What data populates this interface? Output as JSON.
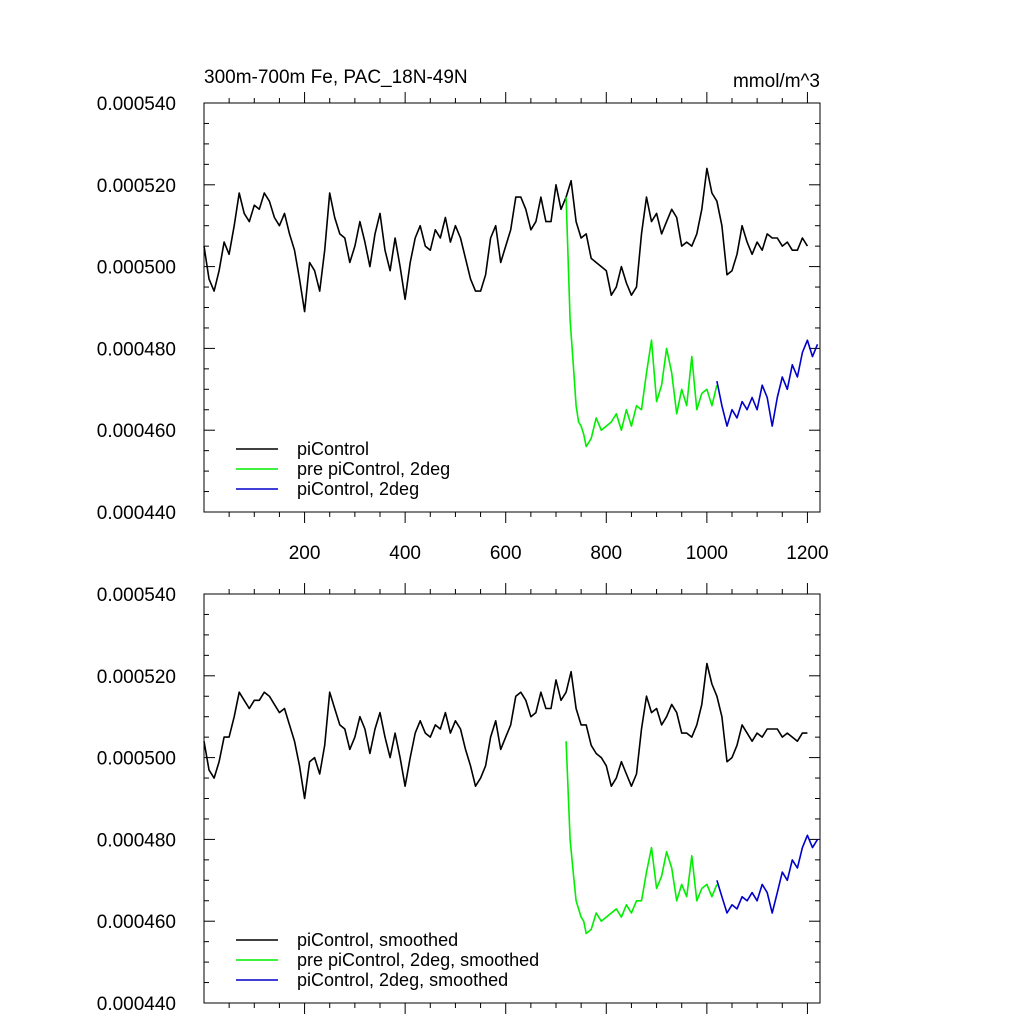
{
  "figure": {
    "title": "300m-700m Fe, PAC_18N-49N",
    "units": "mmol/m^3"
  },
  "chart_data": [
    {
      "type": "line",
      "title": "300m-700m Fe, PAC_18N-49N",
      "units": "mmol/m^3",
      "xlim": [
        0,
        1225
      ],
      "ylim": [
        0.00044,
        0.00054
      ],
      "yticks": [
        "0.000440",
        "0.000460",
        "0.000480",
        "0.000500",
        "0.000520",
        "0.000540"
      ],
      "xticks": [
        "200",
        "400",
        "600",
        "800",
        "1000",
        "1200"
      ],
      "legend_position": "bottom-left",
      "series": [
        {
          "name": "piControl",
          "color": "#000000",
          "x": [
            0,
            10,
            20,
            30,
            40,
            50,
            60,
            70,
            80,
            90,
            100,
            110,
            120,
            130,
            140,
            150,
            160,
            170,
            180,
            190,
            200,
            210,
            220,
            230,
            240,
            250,
            260,
            270,
            280,
            290,
            300,
            310,
            320,
            330,
            340,
            350,
            360,
            370,
            380,
            390,
            400,
            410,
            420,
            430,
            440,
            450,
            460,
            470,
            480,
            490,
            500,
            510,
            520,
            530,
            540,
            550,
            560,
            570,
            580,
            590,
            600,
            610,
            620,
            630,
            640,
            650,
            660,
            670,
            680,
            690,
            700,
            710,
            720,
            730,
            740,
            750,
            760,
            770,
            780,
            790,
            800,
            810,
            820,
            830,
            840,
            850,
            860,
            870,
            880,
            890,
            900,
            910,
            920,
            930,
            940,
            950,
            960,
            970,
            980,
            990,
            1000,
            1010,
            1020,
            1030,
            1040,
            1050,
            1060,
            1070,
            1080,
            1090,
            1100,
            1110,
            1120,
            1130,
            1140,
            1150,
            1160,
            1170,
            1180,
            1190,
            1200
          ],
          "y": [
            0.000505,
            0.000497,
            0.000494,
            0.000499,
            0.000506,
            0.000503,
            0.00051,
            0.000518,
            0.000513,
            0.000511,
            0.000515,
            0.000514,
            0.000518,
            0.000516,
            0.000512,
            0.00051,
            0.000513,
            0.000508,
            0.000504,
            0.000497,
            0.000489,
            0.000501,
            0.000499,
            0.000494,
            0.000504,
            0.000518,
            0.000512,
            0.000508,
            0.000507,
            0.000501,
            0.000505,
            0.000511,
            0.000506,
            0.0005,
            0.000508,
            0.000513,
            0.000504,
            0.000499,
            0.000507,
            0.0005,
            0.000492,
            0.000501,
            0.000507,
            0.00051,
            0.000505,
            0.000504,
            0.000509,
            0.000507,
            0.000512,
            0.000506,
            0.00051,
            0.000507,
            0.000502,
            0.000497,
            0.000494,
            0.000494,
            0.000498,
            0.000507,
            0.00051,
            0.000501,
            0.000505,
            0.000509,
            0.000517,
            0.000517,
            0.000514,
            0.000509,
            0.000511,
            0.000517,
            0.000511,
            0.000511,
            0.00052,
            0.000514,
            0.000517,
            0.000521,
            0.000511,
            0.000507,
            0.000508,
            0.000502,
            0.000501,
            0.0005,
            0.000499,
            0.000493,
            0.000495,
            0.0005,
            0.000496,
            0.000493,
            0.000495,
            0.000508,
            0.000517,
            0.000511,
            0.000513,
            0.000508,
            0.000511,
            0.000514,
            0.000512,
            0.000505,
            0.000506,
            0.000505,
            0.000508,
            0.000514,
            0.000524,
            0.000518,
            0.000516,
            0.00051,
            0.000498,
            0.000499,
            0.000503,
            0.00051,
            0.000506,
            0.000503,
            0.000506,
            0.000504,
            0.000508,
            0.000507,
            0.000507,
            0.000505,
            0.000506,
            0.000504,
            0.000504,
            0.000507,
            0.000505
          ]
        },
        {
          "name": "pre piControl, 2deg",
          "color": "#00ee00",
          "x": [
            720,
            728,
            735,
            740,
            745,
            750,
            755,
            760,
            770,
            780,
            790,
            800,
            810,
            820,
            830,
            840,
            850,
            860,
            870,
            880,
            890,
            900,
            910,
            920,
            930,
            940,
            950,
            960,
            970,
            980,
            990,
            1000,
            1010,
            1020
          ],
          "y": [
            0.000517,
            0.000487,
            0.000475,
            0.000466,
            0.000462,
            0.000461,
            0.000459,
            0.000456,
            0.000458,
            0.000463,
            0.00046,
            0.000461,
            0.000462,
            0.000464,
            0.00046,
            0.000465,
            0.000461,
            0.000466,
            0.000465,
            0.000474,
            0.000482,
            0.000467,
            0.000471,
            0.00048,
            0.000474,
            0.000464,
            0.00047,
            0.000466,
            0.000478,
            0.000465,
            0.000469,
            0.00047,
            0.000466,
            0.000471
          ]
        },
        {
          "name": "piControl, 2deg",
          "color": "#0000cc",
          "x": [
            1020,
            1030,
            1040,
            1050,
            1060,
            1070,
            1080,
            1090,
            1100,
            1110,
            1120,
            1130,
            1140,
            1150,
            1160,
            1170,
            1180,
            1190,
            1200,
            1210,
            1220
          ],
          "y": [
            0.000472,
            0.000466,
            0.000461,
            0.000465,
            0.000463,
            0.000467,
            0.000465,
            0.000468,
            0.000465,
            0.000471,
            0.000468,
            0.000461,
            0.000468,
            0.000473,
            0.00047,
            0.000476,
            0.000473,
            0.000479,
            0.000482,
            0.000478,
            0.000481
          ]
        }
      ]
    },
    {
      "type": "line",
      "xlim": [
        0,
        1225
      ],
      "ylim": [
        0.00044,
        0.00054
      ],
      "yticks": [
        "0.000440",
        "0.000460",
        "0.000480",
        "0.000500",
        "0.000520",
        "0.000540"
      ],
      "legend_position": "bottom-left",
      "series": [
        {
          "name": "piControl, smoothed",
          "color": "#000000",
          "x": [
            0,
            10,
            20,
            30,
            40,
            50,
            60,
            70,
            80,
            90,
            100,
            110,
            120,
            130,
            140,
            150,
            160,
            170,
            180,
            190,
            200,
            210,
            220,
            230,
            240,
            250,
            260,
            270,
            280,
            290,
            300,
            310,
            320,
            330,
            340,
            350,
            360,
            370,
            380,
            390,
            400,
            410,
            420,
            430,
            440,
            450,
            460,
            470,
            480,
            490,
            500,
            510,
            520,
            530,
            540,
            550,
            560,
            570,
            580,
            590,
            600,
            610,
            620,
            630,
            640,
            650,
            660,
            670,
            680,
            690,
            700,
            710,
            720,
            730,
            740,
            750,
            760,
            770,
            780,
            790,
            800,
            810,
            820,
            830,
            840,
            850,
            860,
            870,
            880,
            890,
            900,
            910,
            920,
            930,
            940,
            950,
            960,
            970,
            980,
            990,
            1000,
            1010,
            1020,
            1030,
            1040,
            1050,
            1060,
            1070,
            1080,
            1090,
            1100,
            1110,
            1120,
            1130,
            1140,
            1150,
            1160,
            1170,
            1180,
            1190,
            1200
          ],
          "y": [
            0.000504,
            0.000497,
            0.000495,
            0.000499,
            0.000505,
            0.000505,
            0.00051,
            0.000516,
            0.000514,
            0.000512,
            0.000514,
            0.000514,
            0.000516,
            0.000515,
            0.000513,
            0.000511,
            0.000512,
            0.000508,
            0.000504,
            0.000498,
            0.00049,
            0.000499,
            0.0005,
            0.000496,
            0.000503,
            0.000516,
            0.000512,
            0.000508,
            0.000507,
            0.000502,
            0.000505,
            0.00051,
            0.000507,
            0.000501,
            0.000507,
            0.000511,
            0.000505,
            0.0005,
            0.000506,
            0.0005,
            0.000493,
            0.0005,
            0.000506,
            0.000509,
            0.000506,
            0.000505,
            0.000508,
            0.000507,
            0.000511,
            0.000506,
            0.000509,
            0.000507,
            0.000502,
            0.000498,
            0.000493,
            0.000495,
            0.000498,
            0.000505,
            0.000509,
            0.000502,
            0.000505,
            0.000508,
            0.000515,
            0.000516,
            0.000514,
            0.00051,
            0.000511,
            0.000516,
            0.000512,
            0.000512,
            0.000519,
            0.000514,
            0.000516,
            0.000521,
            0.000512,
            0.000508,
            0.000508,
            0.000503,
            0.000501,
            0.0005,
            0.000498,
            0.000493,
            0.000495,
            0.000499,
            0.000496,
            0.000493,
            0.000496,
            0.000507,
            0.000515,
            0.000511,
            0.000512,
            0.000508,
            0.00051,
            0.000513,
            0.000511,
            0.000506,
            0.000506,
            0.000505,
            0.000508,
            0.000513,
            0.000523,
            0.000518,
            0.000515,
            0.00051,
            0.000499,
            0.0005,
            0.000503,
            0.000508,
            0.000506,
            0.000504,
            0.000506,
            0.000505,
            0.000507,
            0.000507,
            0.000507,
            0.000505,
            0.000506,
            0.000505,
            0.000504,
            0.000506,
            0.000506
          ]
        },
        {
          "name": "pre piControl, 2deg, smoothed",
          "color": "#00ee00",
          "x": [
            720,
            728,
            735,
            740,
            745,
            750,
            755,
            760,
            770,
            780,
            790,
            800,
            810,
            820,
            830,
            840,
            850,
            860,
            870,
            880,
            890,
            900,
            910,
            920,
            930,
            940,
            950,
            960,
            970,
            980,
            990,
            1000,
            1010,
            1020
          ],
          "y": [
            0.000504,
            0.00048,
            0.000471,
            0.000465,
            0.000463,
            0.000461,
            0.00046,
            0.000457,
            0.000458,
            0.000462,
            0.00046,
            0.000461,
            0.000462,
            0.000463,
            0.000461,
            0.000464,
            0.000462,
            0.000465,
            0.000465,
            0.000472,
            0.000478,
            0.000468,
            0.000471,
            0.000477,
            0.000473,
            0.000465,
            0.000469,
            0.000466,
            0.000476,
            0.000465,
            0.000468,
            0.000469,
            0.000466,
            0.000469
          ]
        },
        {
          "name": "piControl, 2deg, smoothed",
          "color": "#0000cc",
          "x": [
            1020,
            1030,
            1040,
            1050,
            1060,
            1070,
            1080,
            1090,
            1100,
            1110,
            1120,
            1130,
            1140,
            1150,
            1160,
            1170,
            1180,
            1190,
            1200,
            1210,
            1220
          ],
          "y": [
            0.00047,
            0.000466,
            0.000462,
            0.000464,
            0.000463,
            0.000466,
            0.000465,
            0.000467,
            0.000465,
            0.000469,
            0.000467,
            0.000462,
            0.000467,
            0.000472,
            0.00047,
            0.000475,
            0.000473,
            0.000478,
            0.000481,
            0.000478,
            0.00048
          ]
        }
      ]
    }
  ]
}
